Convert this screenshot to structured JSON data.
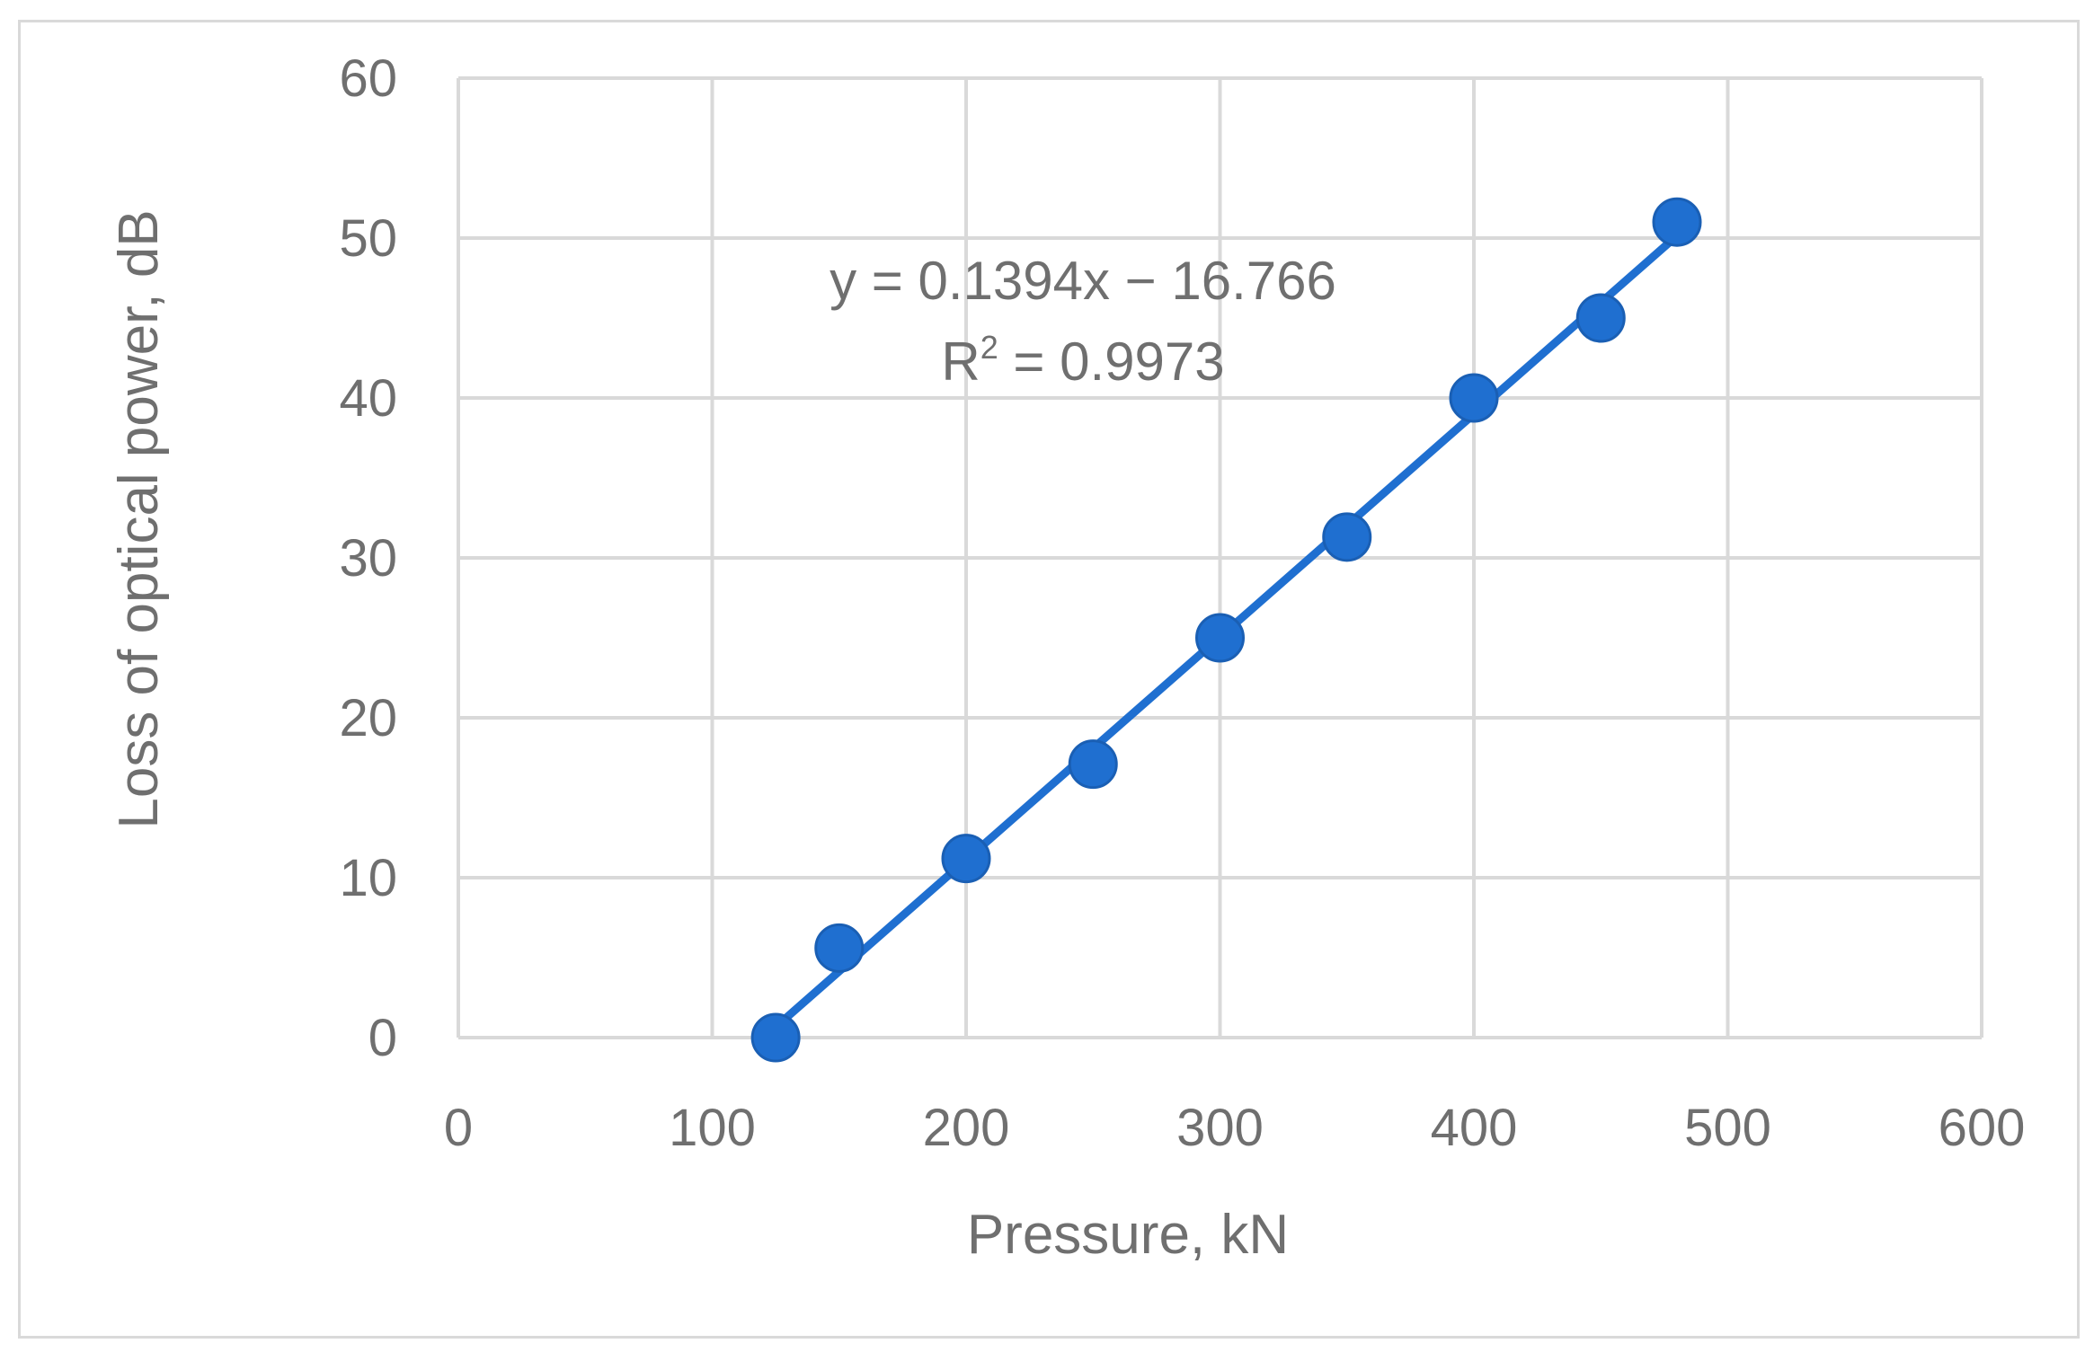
{
  "chart_data": {
    "type": "scatter",
    "xlabel": "Pressure, kN",
    "ylabel": "Loss of optical power, dB",
    "xlim": [
      0,
      600
    ],
    "ylim": [
      0,
      60
    ],
    "x_ticks": [
      0,
      100,
      200,
      300,
      400,
      500,
      600
    ],
    "y_ticks": [
      0,
      10,
      20,
      30,
      40,
      50,
      60
    ],
    "grid": true,
    "series": [
      {
        "x": [
          125,
          150,
          200,
          250,
          300,
          350,
          400,
          450,
          480
        ],
        "y": [
          0,
          5.6,
          11.2,
          17.1,
          25.0,
          31.3,
          40.0,
          45.0,
          51.0
        ],
        "color": "#1f6fd0"
      }
    ],
    "trendline": {
      "type": "linear",
      "slope": 0.1394,
      "intercept": -16.766,
      "x_range": [
        125,
        480
      ],
      "equation": "y = 0.1394x − 16.766",
      "r2_prefix": "R",
      "r2_sup": "2",
      "r2_value": " = 0.9973",
      "color": "#1f6fd0"
    }
  }
}
